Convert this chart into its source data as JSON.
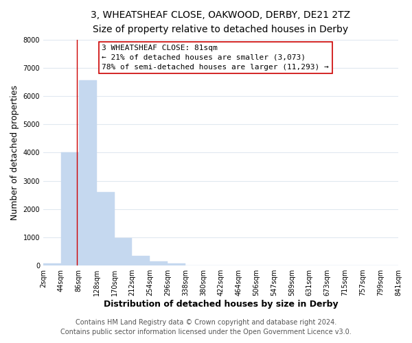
{
  "title1": "3, WHEATSHEAF CLOSE, OAKWOOD, DERBY, DE21 2TZ",
  "title2": "Size of property relative to detached houses in Derby",
  "xlabel": "Distribution of detached houses by size in Derby",
  "ylabel": "Number of detached properties",
  "bar_edges": [
    2,
    44,
    86,
    128,
    170,
    212,
    254,
    296,
    338,
    380,
    422,
    464,
    506,
    547,
    589,
    631,
    673,
    715,
    757,
    799,
    841
  ],
  "bar_heights": [
    75,
    4000,
    6550,
    2600,
    975,
    335,
    140,
    75,
    0,
    0,
    0,
    0,
    0,
    0,
    0,
    0,
    0,
    0,
    0,
    0
  ],
  "bar_color": "#c5d8ef",
  "bar_edge_color": "#c5d8ef",
  "property_line_x": 81,
  "property_line_color": "#cc0000",
  "ylim": [
    0,
    8000
  ],
  "yticks": [
    0,
    1000,
    2000,
    3000,
    4000,
    5000,
    6000,
    7000,
    8000
  ],
  "xtick_labels": [
    "2sqm",
    "44sqm",
    "86sqm",
    "128sqm",
    "170sqm",
    "212sqm",
    "254sqm",
    "296sqm",
    "338sqm",
    "380sqm",
    "422sqm",
    "464sqm",
    "506sqm",
    "547sqm",
    "589sqm",
    "631sqm",
    "673sqm",
    "715sqm",
    "757sqm",
    "799sqm",
    "841sqm"
  ],
  "annotation_box_text": "3 WHEATSHEAF CLOSE: 81sqm\n← 21% of detached houses are smaller (3,073)\n78% of semi-detached houses are larger (11,293) →",
  "footer1": "Contains HM Land Registry data © Crown copyright and database right 2024.",
  "footer2": "Contains public sector information licensed under the Open Government Licence v3.0.",
  "background_color": "#ffffff",
  "plot_background_color": "#ffffff",
  "grid_color": "#e0e8f0",
  "title_fontsize": 10,
  "subtitle_fontsize": 9,
  "axis_label_fontsize": 9,
  "tick_fontsize": 7,
  "footer_fontsize": 7,
  "annotation_fontsize": 8
}
